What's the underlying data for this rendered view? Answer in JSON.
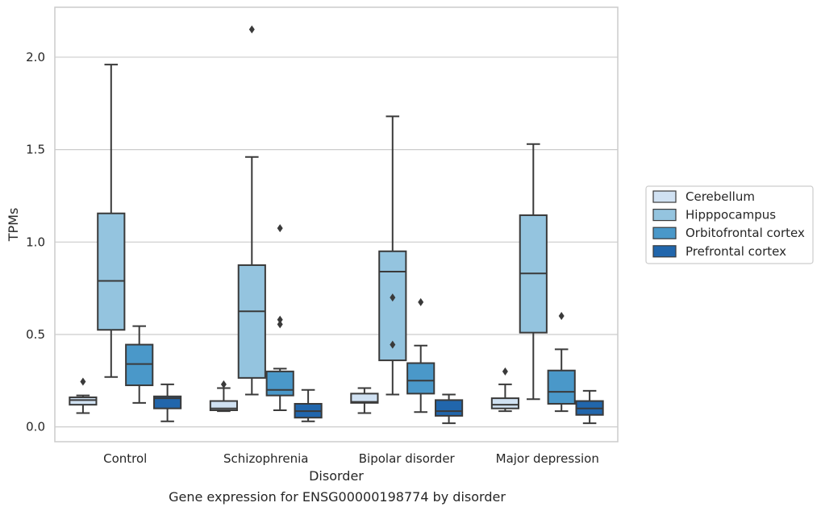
{
  "chart_data": {
    "type": "box",
    "title": "",
    "caption": "Gene expression for ENSG00000198774 by disorder",
    "xlabel": "Disorder",
    "ylabel": "TPMs",
    "ylim": [
      -0.08,
      2.27
    ],
    "yticks": [
      0.0,
      0.5,
      1.0,
      1.5,
      2.0
    ],
    "ytick_labels": [
      "0.0",
      "0.5",
      "1.0",
      "1.5",
      "2.0"
    ],
    "grid": "horizontal",
    "legend_position": "right",
    "categories": [
      "Control",
      "Schizophrenia",
      "Bipolar disorder",
      "Major depression"
    ],
    "series": [
      {
        "name": "Cerebellum",
        "color": "#d0e1f2",
        "boxes": [
          {
            "whislo": 0.075,
            "q1": 0.12,
            "med": 0.145,
            "q3": 0.16,
            "whishi": 0.17,
            "fliers": [
              0.245
            ]
          },
          {
            "whislo": 0.085,
            "q1": 0.09,
            "med": 0.1,
            "q3": 0.14,
            "whishi": 0.21,
            "fliers": [
              0.23
            ]
          },
          {
            "whislo": 0.075,
            "q1": 0.13,
            "med": 0.135,
            "q3": 0.18,
            "whishi": 0.21,
            "fliers": []
          },
          {
            "whislo": 0.085,
            "q1": 0.1,
            "med": 0.12,
            "q3": 0.155,
            "whishi": 0.23,
            "fliers": [
              0.3
            ]
          }
        ]
      },
      {
        "name": "Hipppocampus",
        "color": "#94c4df",
        "boxes": [
          {
            "whislo": 0.27,
            "q1": 0.525,
            "med": 0.79,
            "q3": 1.155,
            "whishi": 1.96,
            "fliers": []
          },
          {
            "whislo": 0.175,
            "q1": 0.265,
            "med": 0.625,
            "q3": 0.875,
            "whishi": 1.46,
            "fliers": [
              2.15
            ]
          },
          {
            "whislo": 0.175,
            "q1": 0.36,
            "med": 0.84,
            "q3": 0.95,
            "whishi": 1.68,
            "fliers": [
              0.7,
              0.445
            ]
          },
          {
            "whislo": 0.15,
            "q1": 0.51,
            "med": 0.83,
            "q3": 1.145,
            "whishi": 1.53,
            "fliers": []
          }
        ]
      },
      {
        "name": "Orbitofrontal cortex",
        "color": "#4a98c9",
        "boxes": [
          {
            "whislo": 0.13,
            "q1": 0.225,
            "med": 0.34,
            "q3": 0.445,
            "whishi": 0.545,
            "fliers": []
          },
          {
            "whislo": 0.09,
            "q1": 0.17,
            "med": 0.2,
            "q3": 0.3,
            "whishi": 0.315,
            "fliers": [
              1.075,
              0.58,
              0.555
            ]
          },
          {
            "whislo": 0.08,
            "q1": 0.18,
            "med": 0.25,
            "q3": 0.345,
            "whishi": 0.44,
            "fliers": [
              0.675
            ]
          },
          {
            "whislo": 0.085,
            "q1": 0.125,
            "med": 0.19,
            "q3": 0.305,
            "whishi": 0.42,
            "fliers": [
              0.6
            ]
          }
        ]
      },
      {
        "name": "Prefrontal cortex",
        "color": "#2166ac",
        "boxes": [
          {
            "whislo": 0.03,
            "q1": 0.1,
            "med": 0.155,
            "q3": 0.165,
            "whishi": 0.23,
            "fliers": []
          },
          {
            "whislo": 0.03,
            "q1": 0.05,
            "med": 0.085,
            "q3": 0.125,
            "whishi": 0.2,
            "fliers": []
          },
          {
            "whislo": 0.02,
            "q1": 0.06,
            "med": 0.085,
            "q3": 0.145,
            "whishi": 0.175,
            "fliers": []
          },
          {
            "whislo": 0.02,
            "q1": 0.065,
            "med": 0.1,
            "q3": 0.14,
            "whishi": 0.195,
            "fliers": []
          }
        ]
      }
    ]
  },
  "style": {
    "line_color": "#3a3a3a",
    "grid_color": "#cccccc",
    "frame_color": "#cccccc"
  }
}
